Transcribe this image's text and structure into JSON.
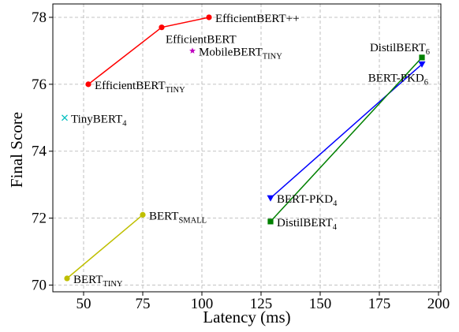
{
  "chart_data": {
    "type": "scatter",
    "xlabel": "Latency (ms)",
    "ylabel": "Final Score",
    "xlim": [
      37,
      201
    ],
    "ylim": [
      69.8,
      78.4
    ],
    "xticks": [
      50,
      75,
      100,
      125,
      150,
      175,
      200
    ],
    "yticks": [
      70,
      72,
      74,
      76,
      78
    ],
    "grid": true,
    "series": [
      {
        "key": "efficientbert",
        "color": "#ff0000",
        "marker": "circle",
        "points": [
          {
            "x": 52,
            "y": 76.0,
            "label": "EfficientBERT",
            "label_sub": "TINY",
            "anchor": "right"
          },
          {
            "x": 83,
            "y": 77.7,
            "label": "EfficientBERT",
            "label_sub": "",
            "anchor": "below"
          },
          {
            "x": 103,
            "y": 78.0,
            "label": "EfficientBERT++",
            "label_sub": "",
            "anchor": "right"
          }
        ]
      },
      {
        "key": "mobilebert",
        "color": "#bf00bf",
        "marker": "star",
        "points": [
          {
            "x": 96,
            "y": 77.0,
            "label": "MobileBERT",
            "label_sub": "TINY",
            "anchor": "right"
          }
        ]
      },
      {
        "key": "tinybert",
        "color": "#00bfbf",
        "marker": "x",
        "points": [
          {
            "x": 42,
            "y": 75.0,
            "label": "TinyBERT",
            "label_sub": "4",
            "anchor": "right"
          }
        ]
      },
      {
        "key": "bert-small",
        "color": "#bfbf00",
        "marker": "circle",
        "points": [
          {
            "x": 43,
            "y": 70.2,
            "label": "BERT",
            "label_sub": "TINY",
            "anchor": "right"
          },
          {
            "x": 75,
            "y": 72.1,
            "label": "BERT",
            "label_sub": "SMALL",
            "anchor": "right"
          }
        ]
      },
      {
        "key": "bert-pkd",
        "color": "#0000ff",
        "marker": "triangle",
        "points": [
          {
            "x": 129,
            "y": 72.6,
            "label": "BERT-PKD",
            "label_sub": "4",
            "anchor": "right"
          },
          {
            "x": 193,
            "y": 76.6,
            "label": "BERT-PKD",
            "label_sub": "6",
            "anchor": "below-left"
          }
        ]
      },
      {
        "key": "distilbert",
        "color": "#008000",
        "marker": "square",
        "points": [
          {
            "x": 129,
            "y": 71.9,
            "label": "DistilBERT",
            "label_sub": "4",
            "anchor": "right"
          },
          {
            "x": 193,
            "y": 76.8,
            "label": "DistilBERT",
            "label_sub": "6",
            "anchor": "above-left"
          }
        ]
      }
    ]
  }
}
